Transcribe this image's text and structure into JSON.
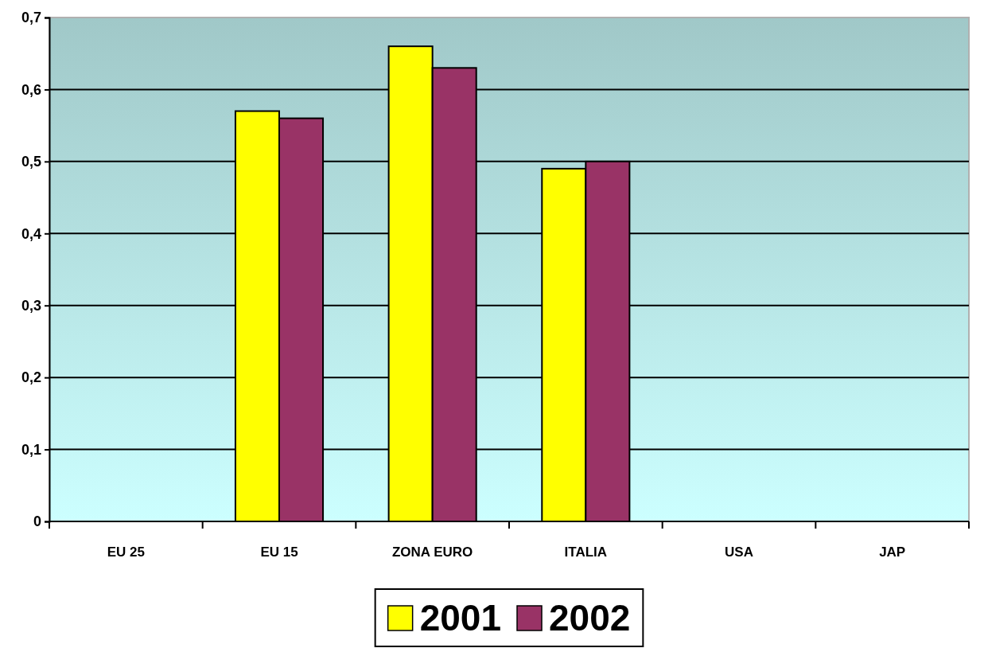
{
  "chart_data": {
    "type": "bar",
    "categories": [
      "EU 25",
      "EU 15",
      "ZONA EURO",
      "ITALIA",
      "USA",
      "JAP"
    ],
    "series": [
      {
        "name": "2001",
        "color": "#ffff00",
        "values": [
          0,
          0.57,
          0.66,
          0.49,
          0,
          0
        ]
      },
      {
        "name": "2002",
        "color": "#993366",
        "values": [
          0,
          0.56,
          0.63,
          0.5,
          0,
          0
        ]
      }
    ],
    "ylim": [
      0,
      0.7
    ],
    "yticks": [
      0,
      {
        "value": 0.1,
        "label": "0,1"
      },
      {
        "value": 0.2,
        "label": "0,2"
      },
      {
        "value": 0.3,
        "label": "0,3"
      },
      {
        "value": 0.4,
        "label": "0,4"
      },
      {
        "value": 0.5,
        "label": "0,5"
      },
      {
        "value": 0.6,
        "label": "0,6"
      },
      {
        "value": 0.7,
        "label": "0,7"
      }
    ],
    "grid": "y",
    "legend": "bottom"
  }
}
